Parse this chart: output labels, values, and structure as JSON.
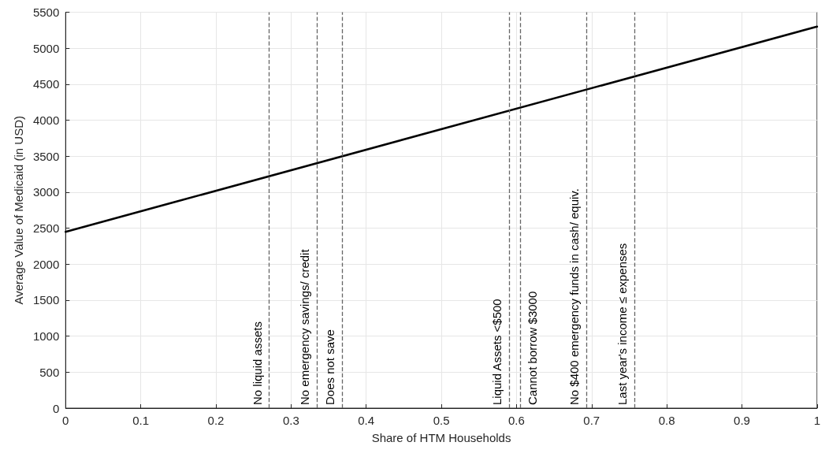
{
  "chart_data": {
    "type": "line",
    "xlabel": "Share of HTM Households",
    "ylabel": "Average Value of Medicaid (in USD)",
    "x": [
      0,
      1
    ],
    "series": [
      {
        "color": "#000000",
        "values": [
          2450,
          5300
        ]
      }
    ],
    "xlim": [
      0,
      1
    ],
    "xticks": [
      0,
      0.1,
      0.2,
      0.3,
      0.4,
      0.5,
      0.6,
      0.7,
      0.8,
      0.9,
      1
    ],
    "ylim": [
      0,
      5500
    ],
    "yticks": [
      0,
      500,
      1000,
      1500,
      2000,
      2500,
      3000,
      3500,
      4000,
      4500,
      5000,
      5500
    ],
    "grid": true,
    "marker": "none",
    "line_style": "solid",
    "ref_lines": [
      {
        "axis": "x",
        "value": 0.271,
        "label": "No liquid assets",
        "line_style": "dashed",
        "color": "#666666"
      },
      {
        "axis": "x",
        "value": 0.334,
        "label": "No emergency savings/ credit",
        "line_style": "dashed",
        "color": "#666666"
      },
      {
        "axis": "x",
        "value": 0.368,
        "label": "Does not save",
        "line_style": "dashed",
        "color": "#666666"
      },
      {
        "axis": "x",
        "value": 0.59,
        "label": "Liquid Assets <$500",
        "line_style": "dashed",
        "color": "#666666"
      },
      {
        "axis": "x",
        "value": 0.605,
        "label": "Cannot borrow $3000",
        "line_style": "dashed",
        "color": "#666666"
      },
      {
        "axis": "x",
        "value": 0.693,
        "label": "No $400 emergency funds in cash/ equiv.",
        "line_style": "dashed",
        "color": "#666666"
      },
      {
        "axis": "x",
        "value": 0.757,
        "label": "Last year's income ≤ expenses",
        "line_style": "dashed",
        "color": "#666666"
      }
    ]
  }
}
